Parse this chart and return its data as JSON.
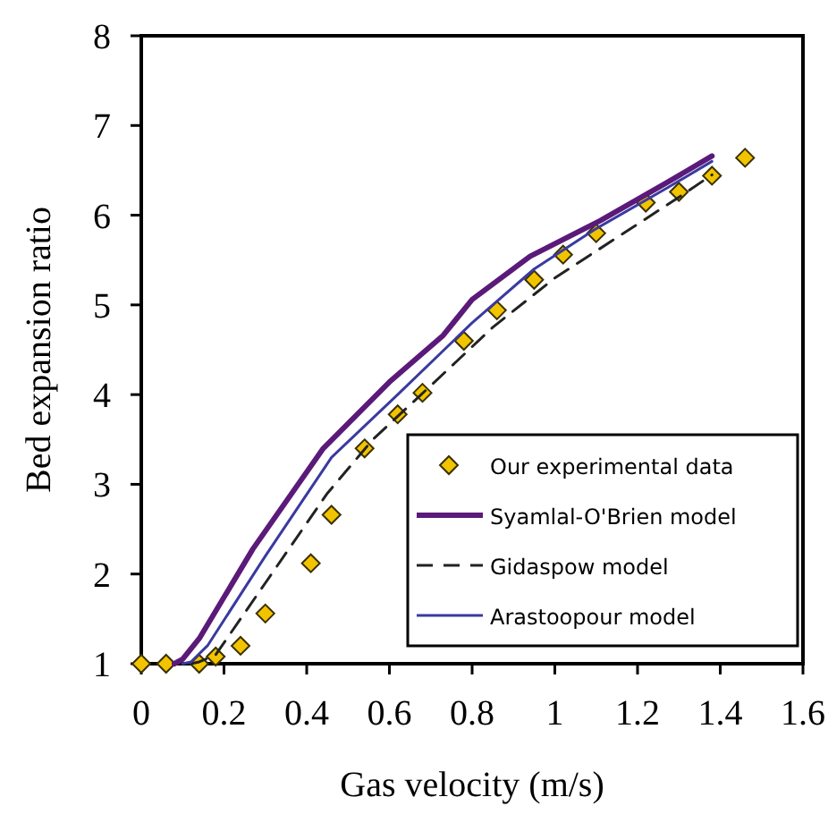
{
  "chart_data": {
    "type": "line",
    "xlabel": "Gas velocity (m/s)",
    "ylabel": "Bed expansion ratio",
    "xlim": [
      0,
      1.6
    ],
    "ylim": [
      1,
      8
    ],
    "xticks": [
      0,
      0.2,
      0.4,
      0.6,
      0.8,
      1,
      1.2,
      1.4,
      1.6
    ],
    "yticks": [
      1,
      2,
      3,
      4,
      5,
      6,
      7,
      8
    ],
    "grid": false,
    "legend": "bottom right",
    "series": [
      {
        "name": "Our experimental data",
        "type": "scatter",
        "marker": "diamond",
        "color": "#f2c400",
        "x": [
          0,
          0.06,
          0.14,
          0.18,
          0.24,
          0.3,
          0.41,
          0.46,
          0.54,
          0.62,
          0.68,
          0.78,
          0.86,
          0.95,
          1.02,
          1.1,
          1.22,
          1.3,
          1.38,
          1.46
        ],
        "values": [
          1,
          1,
          1,
          1.08,
          1.2,
          1.56,
          2.12,
          2.66,
          3.4,
          3.78,
          4.02,
          4.6,
          4.94,
          5.28,
          5.56,
          5.8,
          6.14,
          6.26,
          6.44,
          6.64
        ]
      },
      {
        "name": "Syamlal-O'Brien model",
        "line_style": "solid",
        "color": "#5b1a7a",
        "x": [
          0.08,
          0.1,
          0.14,
          0.27,
          0.44,
          0.6,
          0.73,
          0.8,
          0.94,
          1.11,
          1.27,
          1.38
        ],
        "values": [
          1,
          1.05,
          1.28,
          2.28,
          3.4,
          4.14,
          4.66,
          5.06,
          5.54,
          5.94,
          6.36,
          6.66
        ]
      },
      {
        "name": "Gidaspow model",
        "line_style": "dashed",
        "color": "#222222",
        "x": [
          0.12,
          0.14,
          0.18,
          0.3,
          0.45,
          0.56,
          0.7,
          0.85,
          1,
          1.15,
          1.3,
          1.38
        ],
        "values": [
          1,
          1.02,
          1.1,
          1.9,
          2.9,
          3.5,
          4.1,
          4.75,
          5.3,
          5.75,
          6.2,
          6.45
        ]
      },
      {
        "name": "Arastoopour model",
        "line_style": "solid",
        "color": "#3a3aa0",
        "x": [
          0.1,
          0.12,
          0.16,
          0.3,
          0.46,
          0.62,
          0.8,
          0.95,
          1.1,
          1.27,
          1.38
        ],
        "values": [
          1,
          1.02,
          1.2,
          2.2,
          3.3,
          4,
          4.8,
          5.4,
          5.85,
          6.3,
          6.6
        ]
      }
    ]
  }
}
